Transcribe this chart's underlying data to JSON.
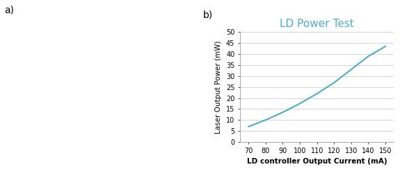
{
  "title": "LD Power Test",
  "title_color": "#4BACC6",
  "xlabel": "LD controller Output Current (mA)",
  "ylabel": "Laser Output Power (mW)",
  "x_data": [
    70,
    80,
    90,
    100,
    110,
    120,
    130,
    140,
    150
  ],
  "y_data": [
    7,
    10,
    13.5,
    17.5,
    22,
    27,
    33,
    39,
    43.5
  ],
  "line_color": "#4BACC6",
  "xlim": [
    65,
    155
  ],
  "ylim": [
    0,
    50
  ],
  "xticks": [
    70,
    80,
    90,
    100,
    110,
    120,
    130,
    140,
    150
  ],
  "yticks": [
    0,
    5,
    10,
    15,
    20,
    25,
    30,
    35,
    40,
    45,
    50
  ],
  "xlabel_fontsize": 7.5,
  "ylabel_fontsize": 7.5,
  "title_fontsize": 11,
  "tick_fontsize": 7,
  "xlabel_fontweight": "bold",
  "figure_facecolor": "#ffffff",
  "axes_facecolor": "#ffffff",
  "grid_color": "#CCCCCC",
  "box_edge_color": "#CCCCCC",
  "line_width": 1.5,
  "photo_label": "a)",
  "chart_label": "b)"
}
